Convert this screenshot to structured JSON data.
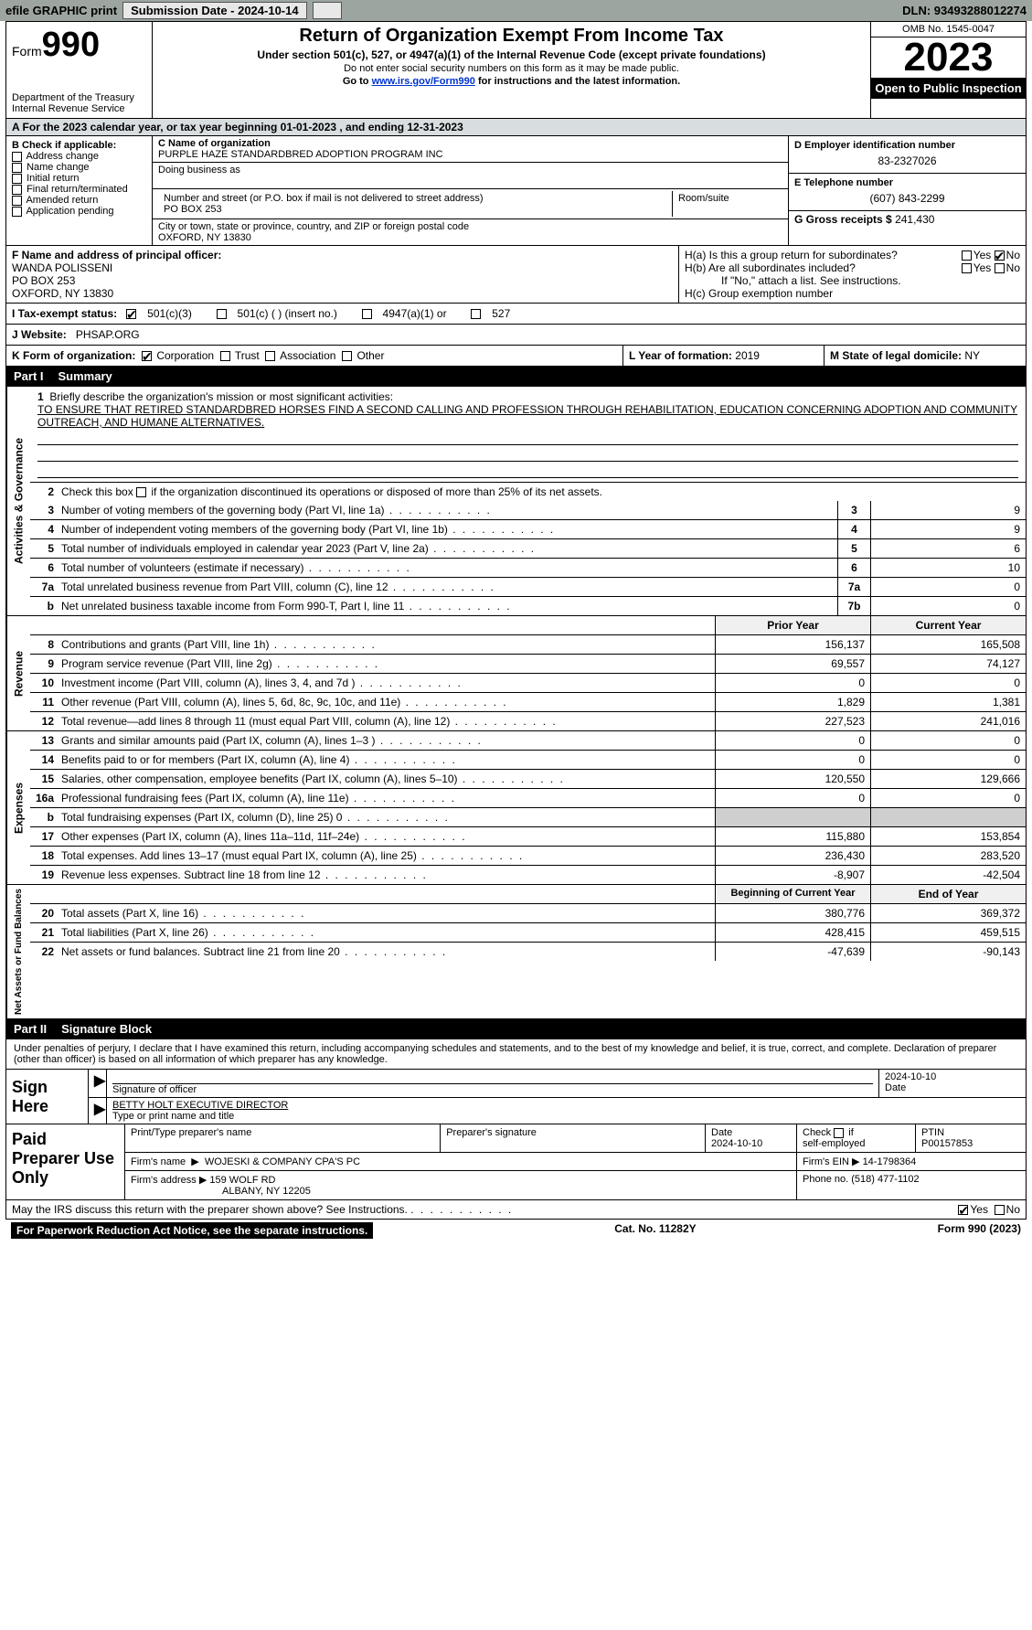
{
  "colors": {
    "topbar_bg": "#9da5a0",
    "black": "#000000",
    "white": "#ffffff",
    "link": "#0033cc",
    "period_bg": "#d8dde0",
    "grey_cell": "#cfcfcf",
    "header_cell": "#f0f0f0"
  },
  "topbar": {
    "efile": "efile GRAPHIC print",
    "submission": "Submission Date - 2024-10-14",
    "dln": "DLN: 93493288012274"
  },
  "header": {
    "form_label": "Form",
    "form_no": "990",
    "dept": "Department of the Treasury",
    "irs": "Internal Revenue Service",
    "title": "Return of Organization Exempt From Income Tax",
    "sub": "Under section 501(c), 527, or 4947(a)(1) of the Internal Revenue Code (except private foundations)",
    "warn": "Do not enter social security numbers on this form as it may be made public.",
    "goto_pre": "Go to ",
    "goto_link": "www.irs.gov/Form990",
    "goto_post": " for instructions and the latest information.",
    "omb": "OMB No. 1545-0047",
    "year": "2023",
    "open": "Open to Public Inspection"
  },
  "period": "A For the 2023 calendar year, or tax year beginning 01-01-2023   , and ending 12-31-2023",
  "boxB": {
    "title": "B Check if applicable:",
    "items": [
      "Address change",
      "Name change",
      "Initial return",
      "Final return/terminated",
      "Amended return",
      "Application pending"
    ]
  },
  "boxC": {
    "name_label": "C Name of organization",
    "name": "PURPLE HAZE STANDARDBRED ADOPTION PROGRAM INC",
    "dba_label": "Doing business as",
    "dba": "",
    "street_label": "Number and street (or P.O. box if mail is not delivered to street address)",
    "street": "PO BOX 253",
    "room_label": "Room/suite",
    "room": "",
    "city_label": "City or town, state or province, country, and ZIP or foreign postal code",
    "city": "OXFORD, NY  13830"
  },
  "boxD": {
    "label": "D Employer identification number",
    "value": "83-2327026"
  },
  "boxE": {
    "label": "E Telephone number",
    "value": "(607) 843-2299"
  },
  "boxG": {
    "label": "G Gross receipts $",
    "value": "241,430"
  },
  "boxF": {
    "label": "F Name and address of principal officer:",
    "name": "WANDA POLISSENI",
    "addr1": "PO BOX 253",
    "addr2": "OXFORD, NY  13830"
  },
  "boxH": {
    "a": "H(a)  Is this a group return for subordinates?",
    "a_yes": "Yes",
    "a_no": "No",
    "b": "H(b)  Are all subordinates included?",
    "b_yes": "Yes",
    "b_no": "No",
    "b_note": "If \"No,\" attach a list. See instructions.",
    "c": "H(c)  Group exemption number"
  },
  "boxI": {
    "label": "I   Tax-exempt status:",
    "c3": "501(c)(3)",
    "c_other": "501(c) (  ) (insert no.)",
    "a1": "4947(a)(1) or",
    "527": "527"
  },
  "boxJ": {
    "label": "J   Website:",
    "value": "PHSAP.ORG"
  },
  "boxK": {
    "label": "K Form of organization:",
    "corp": "Corporation",
    "trust": "Trust",
    "assoc": "Association",
    "other": "Other"
  },
  "boxL": {
    "label": "L Year of formation:",
    "value": "2019"
  },
  "boxM": {
    "label": "M State of legal domicile:",
    "value": "NY"
  },
  "part1": {
    "pn": "Part I",
    "title": "Summary"
  },
  "mission": {
    "num": "1",
    "label": "Briefly describe the organization's mission or most significant activities:",
    "text": "TO ENSURE THAT RETIRED STANDARDBRED HORSES FIND A SECOND CALLING AND PROFESSION THROUGH REHABILITATION, EDUCATION CONCERNING ADOPTION AND COMMUNITY OUTREACH, AND HUMANE ALTERNATIVES."
  },
  "line2": {
    "num": "2",
    "text": "Check this box      if the organization discontinued its operations or disposed of more than 25% of its net assets."
  },
  "gov_lines": [
    {
      "n": "3",
      "t": "Number of voting members of the governing body (Part VI, line 1a)",
      "box": "3",
      "v": "9"
    },
    {
      "n": "4",
      "t": "Number of independent voting members of the governing body (Part VI, line 1b)",
      "box": "4",
      "v": "9"
    },
    {
      "n": "5",
      "t": "Total number of individuals employed in calendar year 2023 (Part V, line 2a)",
      "box": "5",
      "v": "6"
    },
    {
      "n": "6",
      "t": "Total number of volunteers (estimate if necessary)",
      "box": "6",
      "v": "10"
    },
    {
      "n": "7a",
      "t": "Total unrelated business revenue from Part VIII, column (C), line 12",
      "box": "7a",
      "v": "0"
    },
    {
      "n": "b",
      "t": "Net unrelated business taxable income from Form 990-T, Part I, line 11",
      "box": "7b",
      "v": "0"
    }
  ],
  "col_headers": {
    "prior": "Prior Year",
    "current": "Current Year"
  },
  "revenue": [
    {
      "n": "8",
      "t": "Contributions and grants (Part VIII, line 1h)",
      "p": "156,137",
      "c": "165,508"
    },
    {
      "n": "9",
      "t": "Program service revenue (Part VIII, line 2g)",
      "p": "69,557",
      "c": "74,127"
    },
    {
      "n": "10",
      "t": "Investment income (Part VIII, column (A), lines 3, 4, and 7d )",
      "p": "0",
      "c": "0"
    },
    {
      "n": "11",
      "t": "Other revenue (Part VIII, column (A), lines 5, 6d, 8c, 9c, 10c, and 11e)",
      "p": "1,829",
      "c": "1,381"
    },
    {
      "n": "12",
      "t": "Total revenue—add lines 8 through 11 (must equal Part VIII, column (A), line 12)",
      "p": "227,523",
      "c": "241,016"
    }
  ],
  "expenses": [
    {
      "n": "13",
      "t": "Grants and similar amounts paid (Part IX, column (A), lines 1–3 )",
      "p": "0",
      "c": "0"
    },
    {
      "n": "14",
      "t": "Benefits paid to or for members (Part IX, column (A), line 4)",
      "p": "0",
      "c": "0"
    },
    {
      "n": "15",
      "t": "Salaries, other compensation, employee benefits (Part IX, column (A), lines 5–10)",
      "p": "120,550",
      "c": "129,666"
    },
    {
      "n": "16a",
      "t": "Professional fundraising fees (Part IX, column (A), line 11e)",
      "p": "0",
      "c": "0"
    },
    {
      "n": "b",
      "t": "Total fundraising expenses (Part IX, column (D), line 25) 0",
      "p": "",
      "c": "",
      "grey": true
    },
    {
      "n": "17",
      "t": "Other expenses (Part IX, column (A), lines 11a–11d, 11f–24e)",
      "p": "115,880",
      "c": "153,854"
    },
    {
      "n": "18",
      "t": "Total expenses. Add lines 13–17 (must equal Part IX, column (A), line 25)",
      "p": "236,430",
      "c": "283,520"
    },
    {
      "n": "19",
      "t": "Revenue less expenses. Subtract line 18 from line 12",
      "p": "-8,907",
      "c": "-42,504"
    }
  ],
  "net_headers": {
    "begin": "Beginning of Current Year",
    "end": "End of Year"
  },
  "net": [
    {
      "n": "20",
      "t": "Total assets (Part X, line 16)",
      "p": "380,776",
      "c": "369,372"
    },
    {
      "n": "21",
      "t": "Total liabilities (Part X, line 26)",
      "p": "428,415",
      "c": "459,515"
    },
    {
      "n": "22",
      "t": "Net assets or fund balances. Subtract line 21 from line 20",
      "p": "-47,639",
      "c": "-90,143"
    }
  ],
  "vtabs": {
    "gov": "Activities & Governance",
    "rev": "Revenue",
    "exp": "Expenses",
    "net": "Net Assets or Fund Balances"
  },
  "part2": {
    "pn": "Part II",
    "title": "Signature Block"
  },
  "sig_text": "Under penalties of perjury, I declare that I have examined this return, including accompanying schedules and statements, and to the best of my knowledge and belief, it is true, correct, and complete. Declaration of preparer (other than officer) is based on all information of which preparer has any knowledge.",
  "sign": {
    "here": "Sign Here",
    "sig_label": "Signature of officer",
    "date_label": "Date",
    "date": "2024-10-10",
    "name": "BETTY HOLT  EXECUTIVE DIRECTOR",
    "name_label": "Type or print name and title"
  },
  "prep": {
    "title": "Paid Preparer Use Only",
    "h_name": "Print/Type preparer's name",
    "h_sig": "Preparer's signature",
    "h_date": "Date",
    "date": "2024-10-10",
    "check": "Check       if self-employed",
    "ptin_l": "PTIN",
    "ptin": "P00157853",
    "firm_name_l": "Firm's name",
    "firm_name": "WOJESKI & COMPANY CPA'S PC",
    "firm_ein_l": "Firm's EIN",
    "firm_ein": "14-1798364",
    "firm_addr_l": "Firm's address",
    "firm_addr1": "159 WOLF RD",
    "firm_addr2": "ALBANY, NY  12205",
    "phone_l": "Phone no.",
    "phone": "(518) 477-1102"
  },
  "discuss": {
    "text": "May the IRS discuss this return with the preparer shown above? See Instructions.",
    "yes": "Yes",
    "no": "No"
  },
  "footer": {
    "pra": "For Paperwork Reduction Act Notice, see the separate instructions.",
    "cat": "Cat. No. 11282Y",
    "form": "Form 990 (2023)"
  }
}
